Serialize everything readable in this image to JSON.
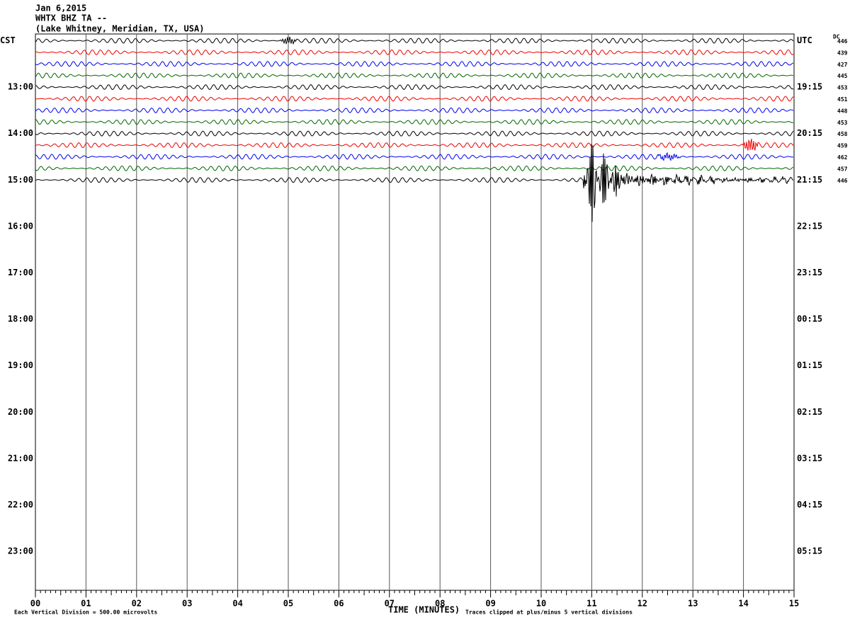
{
  "header": {
    "date": "Jan 6,2015",
    "station": "WHTX BHZ TA --",
    "location": "(Lake Whitney, Meridian, TX, USA)"
  },
  "left_labels": [
    "CST",
    "13:00",
    "14:00",
    "15:00",
    "16:00",
    "17:00",
    "18:00",
    "19:00",
    "20:00",
    "21:00",
    "22:00",
    "23:00"
  ],
  "right_labels": [
    "UTC",
    "19:15",
    "20:15",
    "21:15",
    "22:15",
    "23:15",
    "00:15",
    "01:15",
    "02:15",
    "03:15",
    "04:15",
    "05:15"
  ],
  "dc_label": "DC",
  "dc_values": [
    "446",
    "439",
    "427",
    "445",
    "453",
    "451",
    "448",
    "453",
    "458",
    "459",
    "462",
    "457",
    "446"
  ],
  "x_axis": {
    "ticks": [
      "00",
      "01",
      "02",
      "03",
      "04",
      "05",
      "06",
      "07",
      "08",
      "09",
      "10",
      "11",
      "12",
      "13",
      "14",
      "15"
    ],
    "title": "TIME (MINUTES)"
  },
  "footer": {
    "scale": "Each Vertical Division =  500.00 microvolts",
    "clip": "Traces clipped at plus/minus 5 vertical divisions"
  }
}
